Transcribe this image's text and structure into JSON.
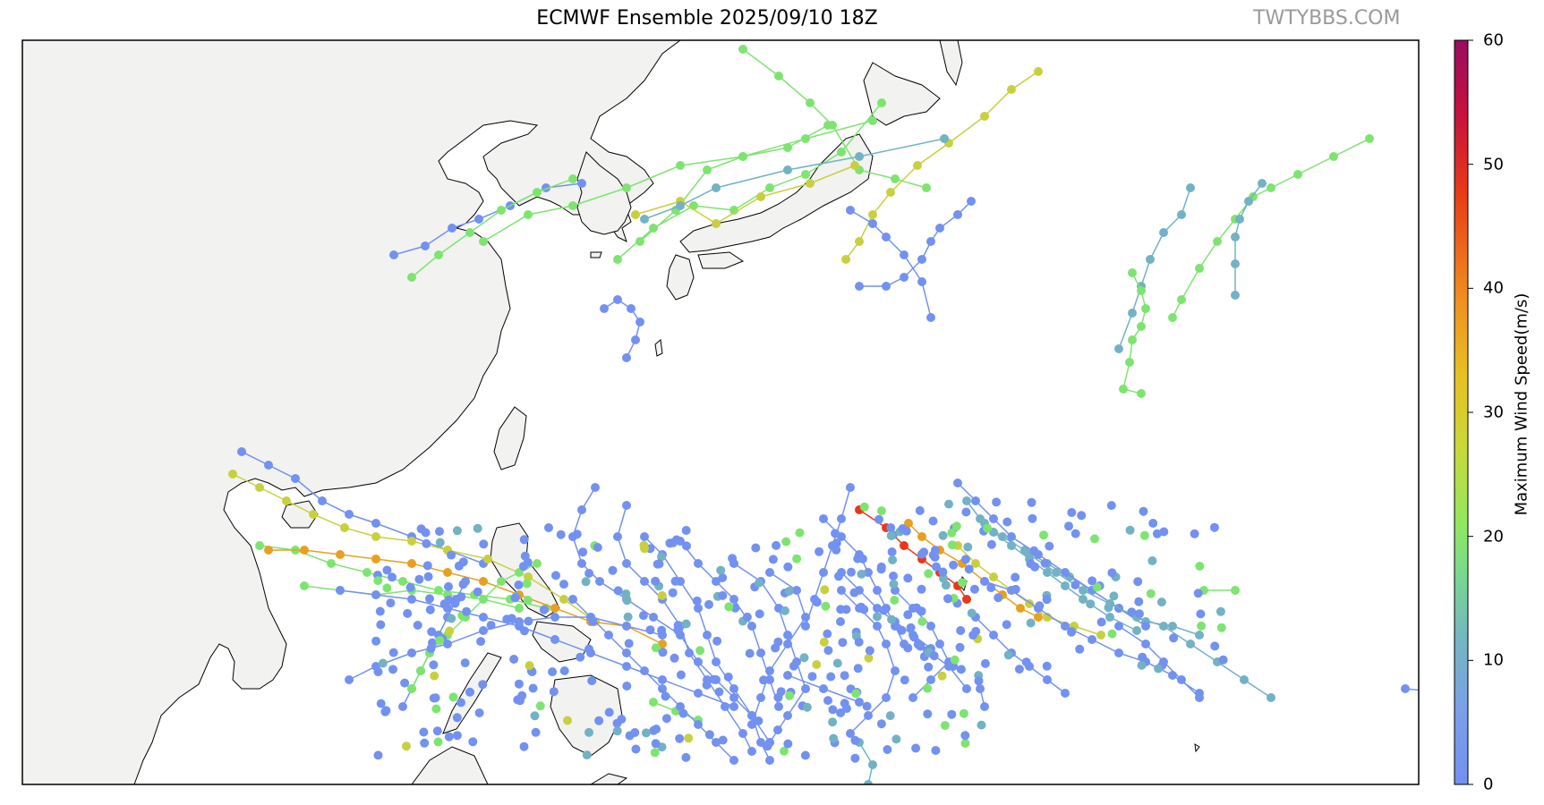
{
  "title": "ECMWF Ensemble 2025/09/10 18Z",
  "watermark": "TWTYBBS.COM",
  "colorbar": {
    "label": "Maximum Wind Speed(m/s)",
    "min": 0,
    "max": 60,
    "ticks": [
      "0",
      "10",
      "20",
      "30",
      "40",
      "50",
      "60"
    ],
    "colormap": [
      "#7291f0",
      "#72a9d0",
      "#70c8a0",
      "#7fe870",
      "#c8d83a",
      "#e8c020",
      "#f08a20",
      "#e83818",
      "#c01040",
      "#980c60"
    ]
  },
  "map": {
    "land_color": "#f2f2f1",
    "ocean_color": "#ffffff",
    "coast_color": "#000000",
    "feature_count_note": ""
  },
  "tracks_note": ""
}
